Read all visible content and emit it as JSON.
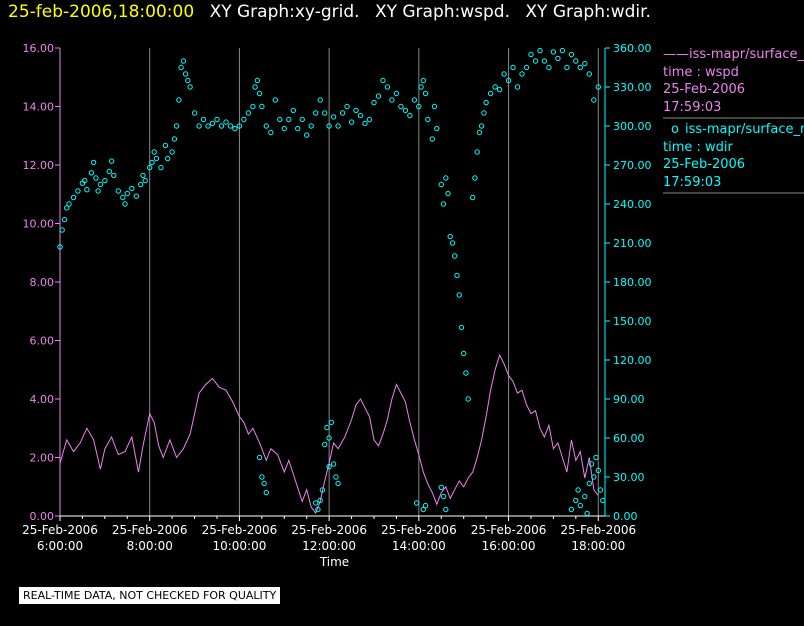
{
  "header": {
    "timestamp": "25-feb-2006,18:00:00",
    "graph_titles": [
      "XY Graph:xy-grid.",
      "XY Graph:wspd.",
      "XY Graph:wdir."
    ]
  },
  "legend": [
    {
      "marker": "——",
      "series": "iss-mapr/surface_m",
      "var": "time : wspd",
      "date": "25-Feb-2006",
      "time": "17:59:03",
      "color": "#ee82ee"
    },
    {
      "marker": "o",
      "series": "iss-mapr/surface_m",
      "var": "time : wdir",
      "date": "25-Feb-2006",
      "time": "17:59:03",
      "color": "#00ffff"
    }
  ],
  "footer": {
    "qc_note": "REAL-TIME DATA, NOT CHECKED FOR QUALITY"
  },
  "colors": {
    "left_axis": "#ee82ee",
    "right_axis": "#00ffff",
    "text": "#ffffff",
    "title": "#ffff00",
    "grid": "#888888"
  },
  "chart_data": {
    "type": "line",
    "xlabel": "Time",
    "x_ticks": [
      {
        "hour": 6,
        "date": "25-Feb-2006",
        "time": "6:00:00"
      },
      {
        "hour": 8,
        "date": "25-Feb-2006",
        "time": "8:00:00"
      },
      {
        "hour": 10,
        "date": "25-Feb-2006",
        "time": "10:00:00"
      },
      {
        "hour": 12,
        "date": "25-Feb-2006",
        "time": "12:00:00"
      },
      {
        "hour": 14,
        "date": "25-Feb-2006",
        "time": "14:00:00"
      },
      {
        "hour": 16,
        "date": "25-Feb-2006",
        "time": "16:00:00"
      },
      {
        "hour": 18,
        "date": "25-Feb-2006",
        "time": "18:00:00"
      }
    ],
    "xlim_hours": [
      6,
      18.15
    ],
    "y_left": {
      "ylim": [
        0,
        16
      ],
      "ticks": [
        "0.00",
        "2.00",
        "4.00",
        "6.00",
        "8.00",
        "10.00",
        "12.00",
        "14.00",
        "16.00"
      ],
      "tick_values": [
        0,
        2,
        4,
        6,
        8,
        10,
        12,
        14,
        16
      ]
    },
    "y_right": {
      "ylim": [
        0,
        360
      ],
      "ticks": [
        "0.00",
        "30.00",
        "60.00",
        "90.00",
        "120.00",
        "150.00",
        "180.00",
        "210.00",
        "240.00",
        "270.00",
        "300.00",
        "330.00",
        "360.00"
      ],
      "tick_values": [
        0,
        30,
        60,
        90,
        120,
        150,
        180,
        210,
        240,
        270,
        300,
        330,
        360
      ]
    },
    "series": [
      {
        "name": "wspd",
        "style": "line",
        "axis": "left",
        "color": "#ee82ee",
        "points": [
          [
            6.0,
            1.8
          ],
          [
            6.15,
            2.6
          ],
          [
            6.3,
            2.2
          ],
          [
            6.45,
            2.5
          ],
          [
            6.6,
            3.0
          ],
          [
            6.75,
            2.6
          ],
          [
            6.9,
            1.6
          ],
          [
            7.0,
            2.3
          ],
          [
            7.15,
            2.7
          ],
          [
            7.3,
            2.1
          ],
          [
            7.45,
            2.2
          ],
          [
            7.6,
            2.7
          ],
          [
            7.75,
            1.5
          ],
          [
            7.85,
            2.4
          ],
          [
            8.0,
            3.5
          ],
          [
            8.1,
            3.2
          ],
          [
            8.2,
            2.4
          ],
          [
            8.3,
            2.0
          ],
          [
            8.45,
            2.6
          ],
          [
            8.6,
            2.0
          ],
          [
            8.75,
            2.3
          ],
          [
            8.9,
            2.8
          ],
          [
            9.0,
            3.5
          ],
          [
            9.1,
            4.2
          ],
          [
            9.25,
            4.5
          ],
          [
            9.4,
            4.7
          ],
          [
            9.55,
            4.4
          ],
          [
            9.7,
            4.3
          ],
          [
            9.85,
            3.9
          ],
          [
            10.0,
            3.4
          ],
          [
            10.1,
            3.2
          ],
          [
            10.2,
            2.8
          ],
          [
            10.3,
            3.0
          ],
          [
            10.45,
            2.5
          ],
          [
            10.6,
            1.9
          ],
          [
            10.7,
            2.3
          ],
          [
            10.85,
            2.1
          ],
          [
            11.0,
            1.5
          ],
          [
            11.1,
            1.9
          ],
          [
            11.25,
            1.2
          ],
          [
            11.4,
            0.5
          ],
          [
            11.5,
            0.9
          ],
          [
            11.6,
            0.3
          ],
          [
            11.7,
            0.1
          ],
          [
            11.8,
            0.5
          ],
          [
            11.9,
            1.2
          ],
          [
            12.0,
            1.8
          ],
          [
            12.1,
            2.5
          ],
          [
            12.2,
            2.3
          ],
          [
            12.35,
            2.7
          ],
          [
            12.5,
            3.3
          ],
          [
            12.6,
            3.8
          ],
          [
            12.7,
            4.0
          ],
          [
            12.8,
            3.7
          ],
          [
            12.9,
            3.4
          ],
          [
            13.0,
            2.6
          ],
          [
            13.1,
            2.4
          ],
          [
            13.2,
            2.8
          ],
          [
            13.3,
            3.3
          ],
          [
            13.4,
            4.0
          ],
          [
            13.5,
            4.5
          ],
          [
            13.6,
            4.2
          ],
          [
            13.7,
            3.9
          ],
          [
            13.8,
            3.2
          ],
          [
            13.9,
            2.6
          ],
          [
            14.0,
            2.1
          ],
          [
            14.1,
            1.5
          ],
          [
            14.2,
            1.1
          ],
          [
            14.3,
            0.8
          ],
          [
            14.4,
            0.4
          ],
          [
            14.5,
            0.8
          ],
          [
            14.6,
            1.0
          ],
          [
            14.7,
            0.6
          ],
          [
            14.8,
            0.9
          ],
          [
            14.9,
            1.2
          ],
          [
            15.0,
            1.0
          ],
          [
            15.1,
            1.3
          ],
          [
            15.2,
            1.5
          ],
          [
            15.3,
            2.0
          ],
          [
            15.4,
            2.6
          ],
          [
            15.5,
            3.4
          ],
          [
            15.6,
            4.3
          ],
          [
            15.7,
            5.0
          ],
          [
            15.8,
            5.5
          ],
          [
            15.9,
            5.2
          ],
          [
            16.0,
            4.8
          ],
          [
            16.1,
            4.6
          ],
          [
            16.2,
            4.2
          ],
          [
            16.3,
            4.3
          ],
          [
            16.4,
            3.8
          ],
          [
            16.5,
            3.5
          ],
          [
            16.6,
            3.6
          ],
          [
            16.7,
            3.0
          ],
          [
            16.8,
            2.7
          ],
          [
            16.9,
            3.1
          ],
          [
            17.0,
            2.3
          ],
          [
            17.1,
            2.5
          ],
          [
            17.2,
            2.0
          ],
          [
            17.3,
            1.5
          ],
          [
            17.4,
            2.6
          ],
          [
            17.5,
            1.9
          ],
          [
            17.6,
            2.2
          ],
          [
            17.7,
            1.3
          ],
          [
            17.8,
            2.0
          ],
          [
            17.9,
            0.9
          ],
          [
            18.0,
            0.7
          ]
        ]
      },
      {
        "name": "wdir",
        "style": "markers",
        "axis": "right",
        "color": "#00ffff",
        "points": [
          [
            6.0,
            207
          ],
          [
            6.05,
            220
          ],
          [
            6.1,
            228
          ],
          [
            6.15,
            237
          ],
          [
            6.2,
            240
          ],
          [
            6.3,
            245
          ],
          [
            6.4,
            250
          ],
          [
            6.5,
            256
          ],
          [
            6.55,
            258
          ],
          [
            6.6,
            251
          ],
          [
            6.7,
            264
          ],
          [
            6.75,
            272
          ],
          [
            6.8,
            260
          ],
          [
            6.85,
            250
          ],
          [
            6.9,
            255
          ],
          [
            7.0,
            258
          ],
          [
            7.1,
            265
          ],
          [
            7.15,
            273
          ],
          [
            7.2,
            262
          ],
          [
            7.3,
            250
          ],
          [
            7.4,
            245
          ],
          [
            7.45,
            240
          ],
          [
            7.5,
            248
          ],
          [
            7.6,
            252
          ],
          [
            7.7,
            246
          ],
          [
            7.8,
            255
          ],
          [
            7.85,
            262
          ],
          [
            7.9,
            258
          ],
          [
            8.0,
            268
          ],
          [
            8.05,
            272
          ],
          [
            8.1,
            280
          ],
          [
            8.15,
            275
          ],
          [
            8.25,
            268
          ],
          [
            8.35,
            285
          ],
          [
            8.4,
            275
          ],
          [
            8.5,
            280
          ],
          [
            8.55,
            290
          ],
          [
            8.6,
            300
          ],
          [
            8.65,
            320
          ],
          [
            8.7,
            345
          ],
          [
            8.75,
            350
          ],
          [
            8.8,
            340
          ],
          [
            8.85,
            335
          ],
          [
            8.9,
            330
          ],
          [
            9.0,
            310
          ],
          [
            9.1,
            300
          ],
          [
            9.2,
            305
          ],
          [
            9.3,
            300
          ],
          [
            9.4,
            302
          ],
          [
            9.5,
            305
          ],
          [
            9.6,
            300
          ],
          [
            9.7,
            303
          ],
          [
            9.8,
            300
          ],
          [
            9.9,
            298
          ],
          [
            10.0,
            300
          ],
          [
            10.1,
            305
          ],
          [
            10.2,
            310
          ],
          [
            10.3,
            315
          ],
          [
            10.35,
            330
          ],
          [
            10.4,
            335
          ],
          [
            10.45,
            325
          ],
          [
            10.5,
            315
          ],
          [
            10.6,
            300
          ],
          [
            10.7,
            295
          ],
          [
            10.8,
            320
          ],
          [
            10.9,
            305
          ],
          [
            11.0,
            298
          ],
          [
            11.1,
            305
          ],
          [
            11.2,
            312
          ],
          [
            11.3,
            298
          ],
          [
            11.4,
            305
          ],
          [
            11.5,
            293
          ],
          [
            11.6,
            300
          ],
          [
            11.7,
            310
          ],
          [
            11.8,
            320
          ],
          [
            11.9,
            310
          ],
          [
            12.0,
            300
          ],
          [
            12.1,
            307
          ],
          [
            12.2,
            300
          ],
          [
            12.3,
            310
          ],
          [
            12.4,
            315
          ],
          [
            12.5,
            303
          ],
          [
            12.6,
            312
          ],
          [
            12.7,
            308
          ],
          [
            12.8,
            302
          ],
          [
            12.9,
            305
          ],
          [
            13.0,
            318
          ],
          [
            13.1,
            323
          ],
          [
            13.2,
            335
          ],
          [
            13.3,
            330
          ],
          [
            13.4,
            320
          ],
          [
            13.5,
            325
          ],
          [
            13.6,
            315
          ],
          [
            13.7,
            312
          ],
          [
            13.8,
            308
          ],
          [
            13.9,
            320
          ],
          [
            14.0,
            315
          ],
          [
            14.05,
            330
          ],
          [
            14.1,
            335
          ],
          [
            14.15,
            325
          ],
          [
            14.2,
            305
          ],
          [
            14.3,
            290
          ],
          [
            14.35,
            315
          ],
          [
            14.4,
            298
          ],
          [
            14.5,
            255
          ],
          [
            14.55,
            240
          ],
          [
            14.6,
            260
          ],
          [
            14.65,
            248
          ],
          [
            14.7,
            215
          ],
          [
            14.75,
            210
          ],
          [
            14.8,
            200
          ],
          [
            14.85,
            185
          ],
          [
            14.9,
            170
          ],
          [
            14.95,
            145
          ],
          [
            15.0,
            125
          ],
          [
            15.05,
            110
          ],
          [
            15.1,
            90
          ],
          [
            15.2,
            245
          ],
          [
            15.25,
            260
          ],
          [
            15.3,
            280
          ],
          [
            15.35,
            295
          ],
          [
            15.4,
            300
          ],
          [
            15.45,
            310
          ],
          [
            15.5,
            318
          ],
          [
            15.6,
            325
          ],
          [
            15.7,
            330
          ],
          [
            15.8,
            328
          ],
          [
            15.9,
            340
          ],
          [
            16.0,
            335
          ],
          [
            16.1,
            345
          ],
          [
            16.2,
            330
          ],
          [
            16.3,
            340
          ],
          [
            16.4,
            345
          ],
          [
            16.5,
            355
          ],
          [
            16.6,
            350
          ],
          [
            16.7,
            358
          ],
          [
            16.8,
            350
          ],
          [
            16.9,
            345
          ],
          [
            17.0,
            357
          ],
          [
            17.1,
            352
          ],
          [
            17.2,
            358
          ],
          [
            17.3,
            345
          ],
          [
            17.4,
            355
          ],
          [
            17.5,
            350
          ],
          [
            17.6,
            345
          ],
          [
            17.7,
            348
          ],
          [
            17.8,
            340
          ],
          [
            17.9,
            320
          ],
          [
            18.0,
            330
          ],
          [
            10.45,
            45
          ],
          [
            10.5,
            30
          ],
          [
            10.55,
            25
          ],
          [
            10.6,
            18
          ],
          [
            11.7,
            10
          ],
          [
            11.75,
            5
          ],
          [
            11.8,
            12
          ],
          [
            11.9,
            55
          ],
          [
            11.95,
            68
          ],
          [
            12.0,
            60
          ],
          [
            12.05,
            72
          ],
          [
            12.1,
            40
          ],
          [
            12.15,
            30
          ],
          [
            12.2,
            25
          ],
          [
            11.85,
            20
          ],
          [
            12.0,
            38
          ],
          [
            13.95,
            10
          ],
          [
            14.1,
            5
          ],
          [
            14.15,
            8
          ],
          [
            14.5,
            22
          ],
          [
            14.55,
            15
          ],
          [
            14.6,
            5
          ],
          [
            17.4,
            5
          ],
          [
            17.5,
            12
          ],
          [
            17.55,
            20
          ],
          [
            17.6,
            8
          ],
          [
            17.7,
            15
          ],
          [
            17.75,
            2
          ],
          [
            17.8,
            25
          ],
          [
            17.85,
            40
          ],
          [
            17.9,
            30
          ],
          [
            17.95,
            45
          ],
          [
            18.0,
            35
          ],
          [
            18.05,
            20
          ],
          [
            18.1,
            12
          ]
        ]
      }
    ]
  }
}
